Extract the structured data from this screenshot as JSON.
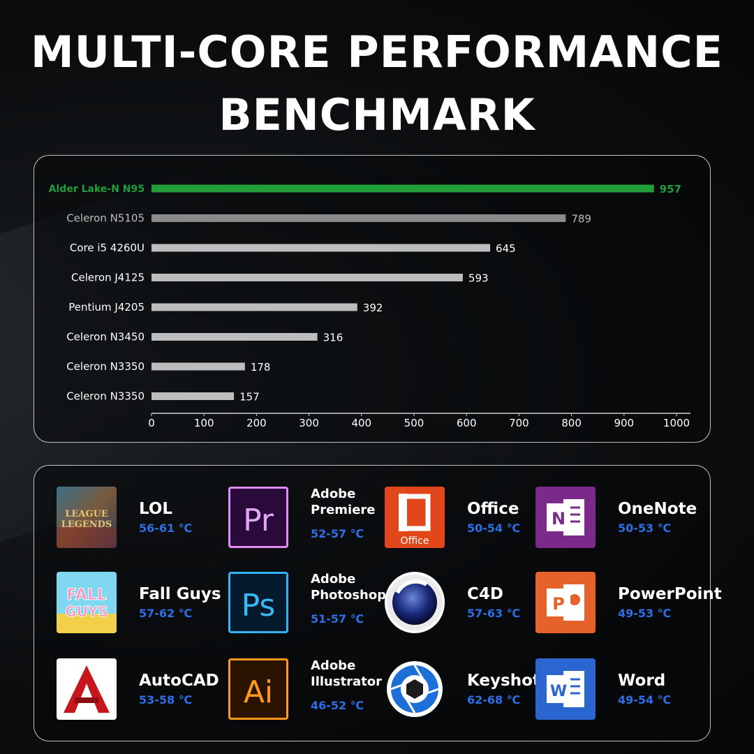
{
  "title_line1": "MULTI-CORE PERFORMANCE",
  "title_line2": "BENCHMARK",
  "chart_data": {
    "type": "bar",
    "orientation": "horizontal",
    "categories": [
      "Alder Lake-N N95",
      "Celeron N5105",
      "Core i5 4260U",
      "Celeron J4125",
      "Pentium J4205",
      "Celeron N3450",
      "Celeron N3350",
      "Celeron N3350"
    ],
    "values": [
      957,
      789,
      645,
      593,
      392,
      316,
      178,
      157
    ],
    "xlim": [
      0,
      1000
    ],
    "xticks": [
      0,
      100,
      200,
      300,
      400,
      500,
      600,
      700,
      800,
      900,
      1000
    ],
    "highlight_index": 0,
    "colors": {
      "highlight": "#1f9e3a",
      "bar": "#bdbdbd",
      "bar_second": "#8a8a8a",
      "label": "#ffffff",
      "label_dim": "#bdbdbd"
    },
    "grid": false
  },
  "apps": [
    {
      "name": "LOL",
      "temp": "56-61 ℃",
      "icon": "league-of-legends-icon"
    },
    {
      "name": "Adobe Premiere",
      "temp": "52-57 ℃",
      "icon": "premiere-pro-icon"
    },
    {
      "name": "Office",
      "temp": "50-54 ℃",
      "icon": "office-icon"
    },
    {
      "name": "OneNote",
      "temp": "50-53 ℃",
      "icon": "onenote-icon"
    },
    {
      "name": "Fall Guys",
      "temp": "57-62 ℃",
      "icon": "fall-guys-icon"
    },
    {
      "name": "Adobe Photoshop",
      "temp": "51-57 ℃",
      "icon": "photoshop-icon"
    },
    {
      "name": "C4D",
      "temp": "57-63 ℃",
      "icon": "cinema4d-icon"
    },
    {
      "name": "PowerPoint",
      "temp": "49-53 ℃",
      "icon": "powerpoint-icon"
    },
    {
      "name": "AutoCAD",
      "temp": "53-58 ℃",
      "icon": "autocad-icon"
    },
    {
      "name": "Adobe Illustrator",
      "temp": "46-52 ℃",
      "icon": "illustrator-icon"
    },
    {
      "name": "Keyshot",
      "temp": "62-68 ℃",
      "icon": "keyshot-icon"
    },
    {
      "name": "Word",
      "temp": "49-54 ℃",
      "icon": "word-icon"
    }
  ],
  "icon_text": {
    "lol": "LEAGUE LEGENDS",
    "pr": "Pr",
    "ps": "Ps",
    "ai": "Ai",
    "office": "Office",
    "onenote": "N",
    "powerpoint": "P",
    "word": "W",
    "fallguys": "FALL GUYS"
  }
}
